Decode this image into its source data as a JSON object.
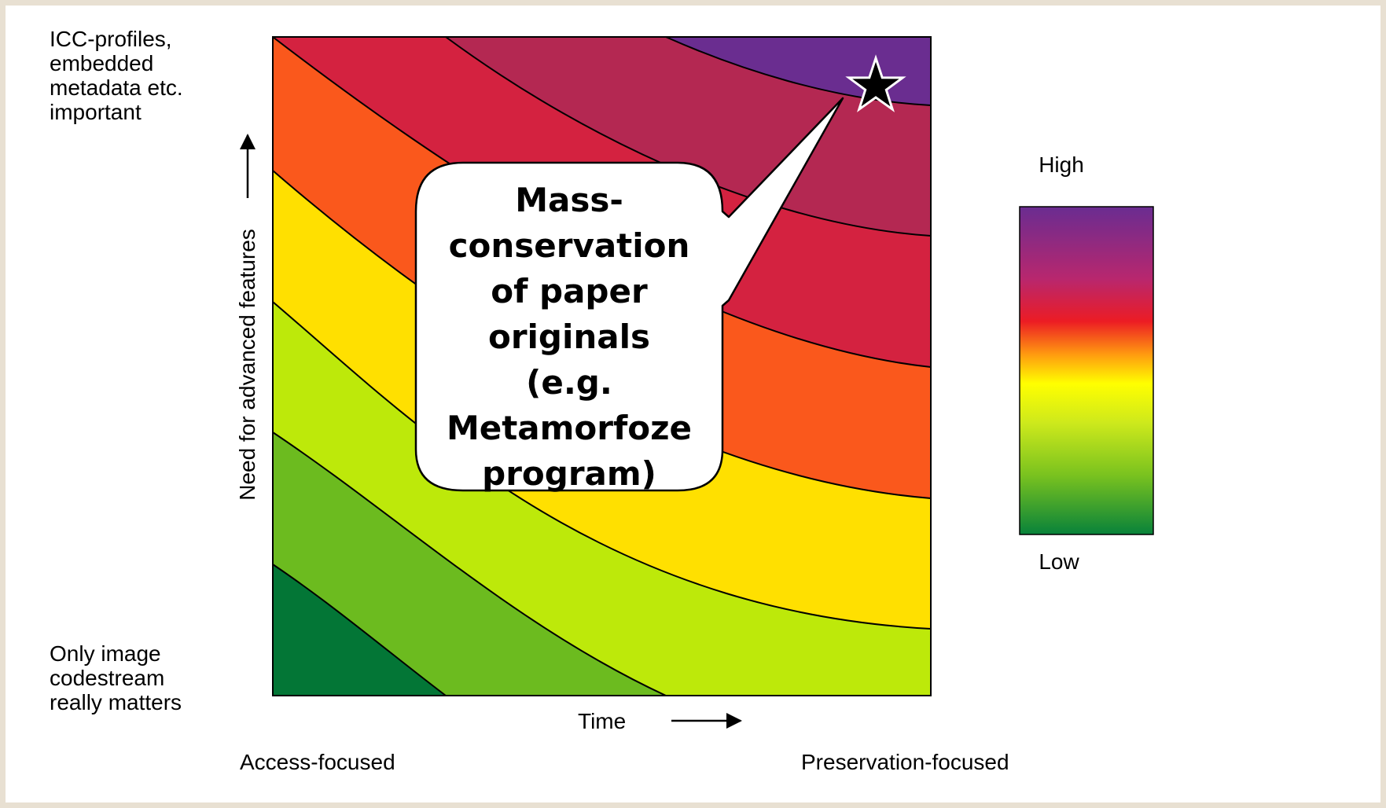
{
  "y_axis": {
    "label": "Need for advanced features",
    "top_label": [
      "ICC-profiles,",
      "embedded",
      "metadata etc.",
      "important"
    ],
    "bottom_label": [
      "Only image",
      "codestream",
      "really matters"
    ]
  },
  "x_axis": {
    "label": "Time",
    "left_label": "Access-focused",
    "right_label": "Preservation-focused"
  },
  "legend": {
    "high": "High",
    "low": "Low",
    "gradient": [
      "#6a2c91",
      "#b8276e",
      "#ec1c24",
      "#ffd200",
      "#ffff00",
      "#cde91c",
      "#79c21f",
      "#08823a"
    ]
  },
  "bands": [
    {
      "level": 1,
      "color": "#037636"
    },
    {
      "level": 2,
      "color": "#6cbb1f"
    },
    {
      "level": 3,
      "color": "#bde90a"
    },
    {
      "level": 4,
      "color": "#ffe000"
    },
    {
      "level": 5,
      "color": "#fa581c"
    },
    {
      "level": 6,
      "color": "#d42240"
    },
    {
      "level": 7,
      "color": "#b42852"
    },
    {
      "level": 8,
      "color": "#6a2d90"
    }
  ],
  "callout": {
    "lines": [
      "Mass-",
      "conservation",
      "of paper",
      "originals",
      "(e.g.",
      "Metamorfoze",
      "program)"
    ],
    "marker": "star-icon"
  }
}
